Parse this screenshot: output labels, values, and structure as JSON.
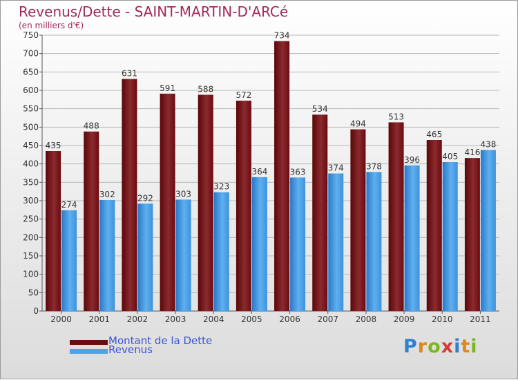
{
  "title": "Revenus/Dette - SAINT-MARTIN-D'ARCé",
  "subtitle": "(en milliers d'€)",
  "logo": {
    "p": "P",
    "r": "r",
    "o": "o",
    "x": "x",
    "i1": "i",
    "t": "t",
    "i2": "i"
  },
  "colors": {
    "dette": "#6b0a10",
    "dette_light": "#9a3a3e",
    "revenus": "#2f7fcf",
    "revenus_light": "#5fb0ef",
    "title": "#a3295a",
    "legend_text": "#3a56d4"
  },
  "legend": [
    {
      "label": "Montant de la Dette"
    },
    {
      "label": "Revenus"
    }
  ],
  "chart_data": {
    "type": "bar",
    "title": "Revenus/Dette - SAINT-MARTIN-D'ARCé",
    "ylabel": "(en milliers d'€)",
    "xlabel": "",
    "categories": [
      "2000",
      "2001",
      "2002",
      "2003",
      "2004",
      "2005",
      "2006",
      "2007",
      "2008",
      "2009",
      "2010",
      "2011"
    ],
    "series": [
      {
        "name": "Montant de la Dette",
        "values": [
          435,
          488,
          631,
          591,
          588,
          572,
          734,
          534,
          494,
          513,
          465,
          416
        ]
      },
      {
        "name": "Revenus",
        "values": [
          274,
          302,
          292,
          303,
          323,
          364,
          363,
          374,
          378,
          396,
          405,
          438
        ]
      }
    ],
    "ylim": [
      0,
      750
    ],
    "yticks": [
      0,
      50,
      100,
      150,
      200,
      250,
      300,
      350,
      400,
      450,
      500,
      550,
      600,
      650,
      700,
      750
    ],
    "grid": true,
    "legend_position": "bottom-left"
  }
}
